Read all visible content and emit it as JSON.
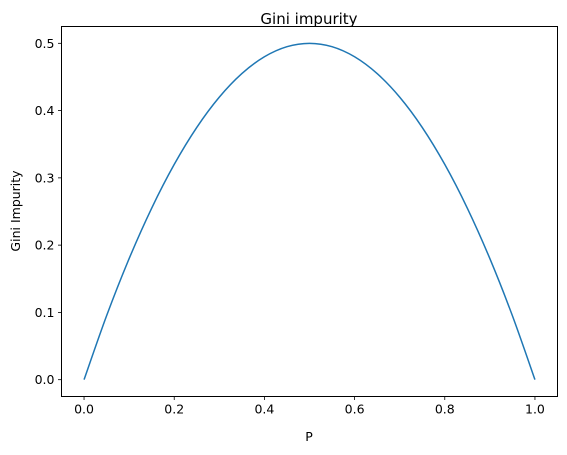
{
  "chart_data": {
    "type": "line",
    "title": "Gini impurity",
    "xlabel": "P",
    "ylabel": "Gini Impurity",
    "xlim": [
      -0.05,
      1.05
    ],
    "ylim": [
      -0.025,
      0.525
    ],
    "xticks": [
      0.0,
      0.2,
      0.4,
      0.6,
      0.8,
      1.0
    ],
    "xtick_labels": [
      "0.0",
      "0.2",
      "0.4",
      "0.6",
      "0.8",
      "1.0"
    ],
    "yticks": [
      0.0,
      0.1,
      0.2,
      0.3,
      0.4,
      0.5
    ],
    "ytick_labels": [
      "0.0",
      "0.1",
      "0.2",
      "0.3",
      "0.4",
      "0.5"
    ],
    "grid": false,
    "line_color": "#1f77b4",
    "series": [
      {
        "x": [
          0.0,
          0.05,
          0.1,
          0.15,
          0.2,
          0.25,
          0.3,
          0.35,
          0.4,
          0.45,
          0.5,
          0.55,
          0.6,
          0.65,
          0.7,
          0.75,
          0.8,
          0.85,
          0.9,
          0.95,
          1.0
        ],
        "values": [
          0.0,
          0.095,
          0.18,
          0.255,
          0.32,
          0.375,
          0.42,
          0.455,
          0.48,
          0.495,
          0.5,
          0.495,
          0.48,
          0.455,
          0.42,
          0.375,
          0.32,
          0.255,
          0.18,
          0.095,
          0.0
        ]
      }
    ]
  }
}
